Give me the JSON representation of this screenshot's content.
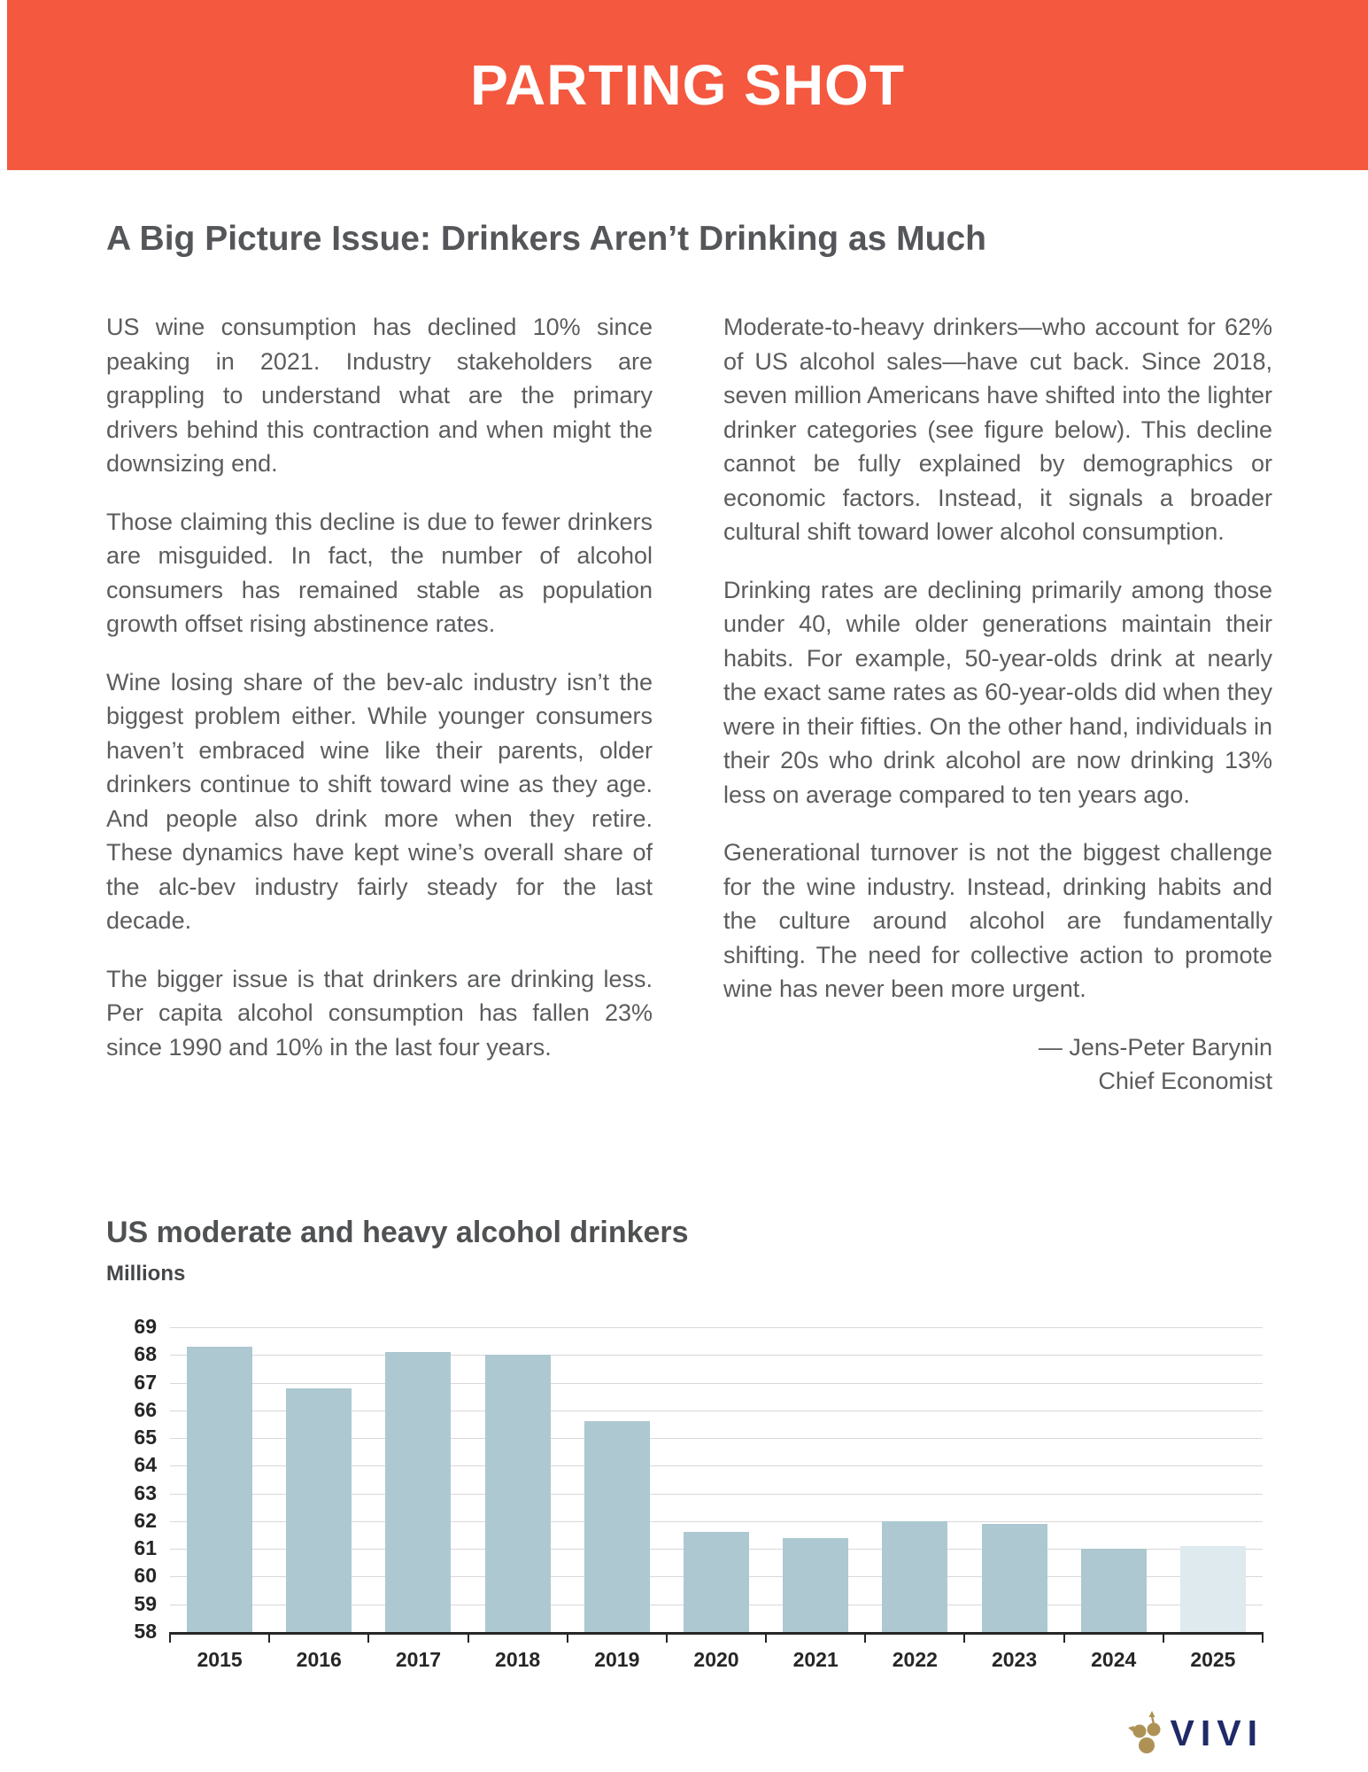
{
  "banner": {
    "title": "PARTING SHOT",
    "color": "#F4583E"
  },
  "article": {
    "title": "A Big Picture Issue: Drinkers Aren’t Drinking as Much",
    "left_column": [
      "US wine consumption has declined 10% since peaking in 2021. Industry stakeholders are grappling to understand what are the primary drivers behind this contraction and when might the downsizing end.",
      "Those claiming this decline is due to fewer drinkers are misguided. In fact, the number of alcohol consumers has remained stable as population growth offset rising abstinence rates.",
      "Wine losing share of the bev-alc industry isn’t the biggest problem either. While younger consumers haven’t embraced wine like their parents, older drinkers continue to shift toward wine as they age. And people also drink more when they retire. These dynamics have kept wine’s overall share of the alc-bev industry fairly steady for the last decade.",
      "The bigger issue is that drinkers are drinking less. Per capita alcohol consumption has fallen 23% since 1990 and 10% in the last four years."
    ],
    "right_column": [
      "Moderate-to-heavy drinkers—who account for 62% of US alcohol sales—have cut back. Since 2018, seven million Americans have shifted into the lighter drinker categories (see figure below). This decline cannot be fully explained by demographics or economic factors. Instead, it signals a broader cultural shift toward lower alcohol consumption.",
      "Drinking rates are declining primarily among those under 40, while older generations maintain their habits. For example, 50-year-olds drink at nearly the exact same rates as 60-year-olds did when they were in their fifties. On the other hand, individuals in their 20s who drink alcohol are now drinking 13% less on average compared to ten years ago.",
      "Generational turnover is not the biggest challenge for the wine industry. Instead, drinking habits and the culture around alcohol are fundamentally shifting. The need for collective action to promote wine has never been more urgent."
    ],
    "byline": {
      "name": "— Jens-Peter Barynin",
      "role": "Chief Economist"
    }
  },
  "chart": {
    "title": "US moderate and heavy alcohol drinkers",
    "subtitle": "Millions"
  },
  "chart_data": {
    "type": "bar",
    "categories": [
      "2015",
      "2016",
      "2017",
      "2018",
      "2019",
      "2020",
      "2021",
      "2022",
      "2023",
      "2024",
      "2025"
    ],
    "values": [
      68.3,
      66.8,
      68.1,
      68.0,
      65.6,
      61.6,
      61.4,
      62.0,
      61.9,
      61.0,
      61.1
    ],
    "title": "US moderate and heavy alcohol drinkers",
    "xlabel": "",
    "ylabel": "Millions",
    "ylim": [
      58,
      69
    ],
    "ytick_step": 1,
    "grid": true,
    "legend": "none",
    "bar_color": "#ADC8D0",
    "forecast_color": "#DEEAEE",
    "forecast_indices": [
      10
    ],
    "gridline_color": "#D8D8D8",
    "axis_color": "#262626"
  },
  "logo": {
    "text": "VIVI",
    "icon": "grape-cluster-arrows-icon",
    "gold": "#AE9255",
    "navy": "#1F2A68"
  }
}
